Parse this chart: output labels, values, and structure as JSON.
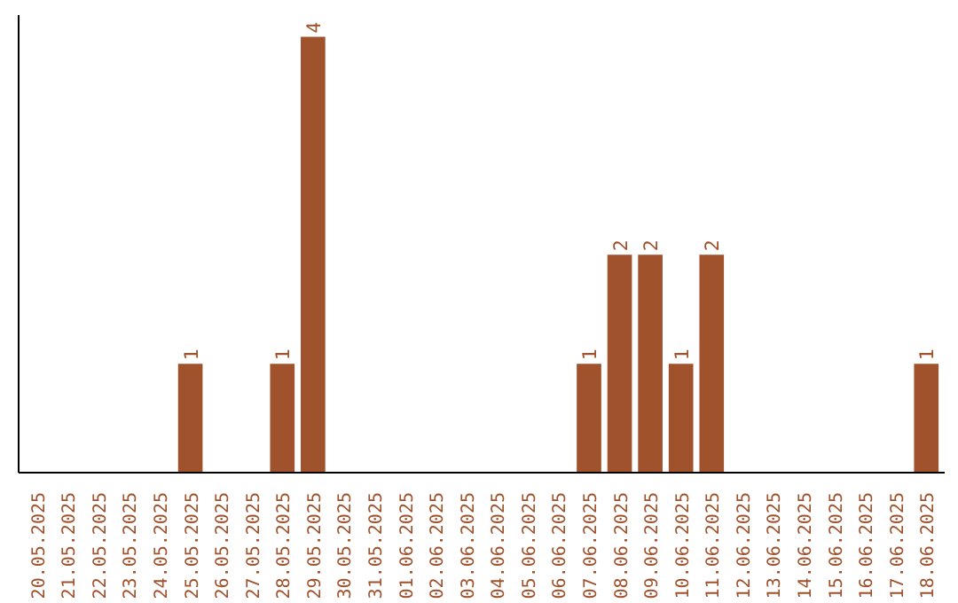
{
  "chart_data": {
    "type": "bar",
    "categories": [
      "20.05.2025",
      "21.05.2025",
      "22.05.2025",
      "23.05.2025",
      "24.05.2025",
      "25.05.2025",
      "26.05.2025",
      "27.05.2025",
      "28.05.2025",
      "29.05.2025",
      "30.05.2025",
      "31.05.2025",
      "01.06.2025",
      "02.06.2025",
      "03.06.2025",
      "04.06.2025",
      "05.06.2025",
      "06.06.2025",
      "07.06.2025",
      "08.06.2025",
      "09.06.2025",
      "10.06.2025",
      "11.06.2025",
      "12.06.2025",
      "13.06.2025",
      "14.06.2025",
      "15.06.2025",
      "16.06.2025",
      "17.06.2025",
      "18.06.2025"
    ],
    "values": [
      0,
      0,
      0,
      0,
      0,
      1,
      0,
      0,
      1,
      4,
      0,
      0,
      0,
      0,
      0,
      0,
      0,
      0,
      1,
      2,
      2,
      1,
      2,
      0,
      0,
      0,
      0,
      0,
      0,
      1
    ],
    "value_labels": [
      null,
      null,
      null,
      null,
      null,
      "1",
      null,
      null,
      "1",
      "4",
      null,
      null,
      null,
      null,
      null,
      null,
      null,
      null,
      "1",
      "2",
      "2",
      "1",
      "2",
      null,
      null,
      null,
      null,
      null,
      null,
      "1"
    ],
    "color": "#a0522d",
    "grid": false,
    "tick_labels": "x"
  }
}
